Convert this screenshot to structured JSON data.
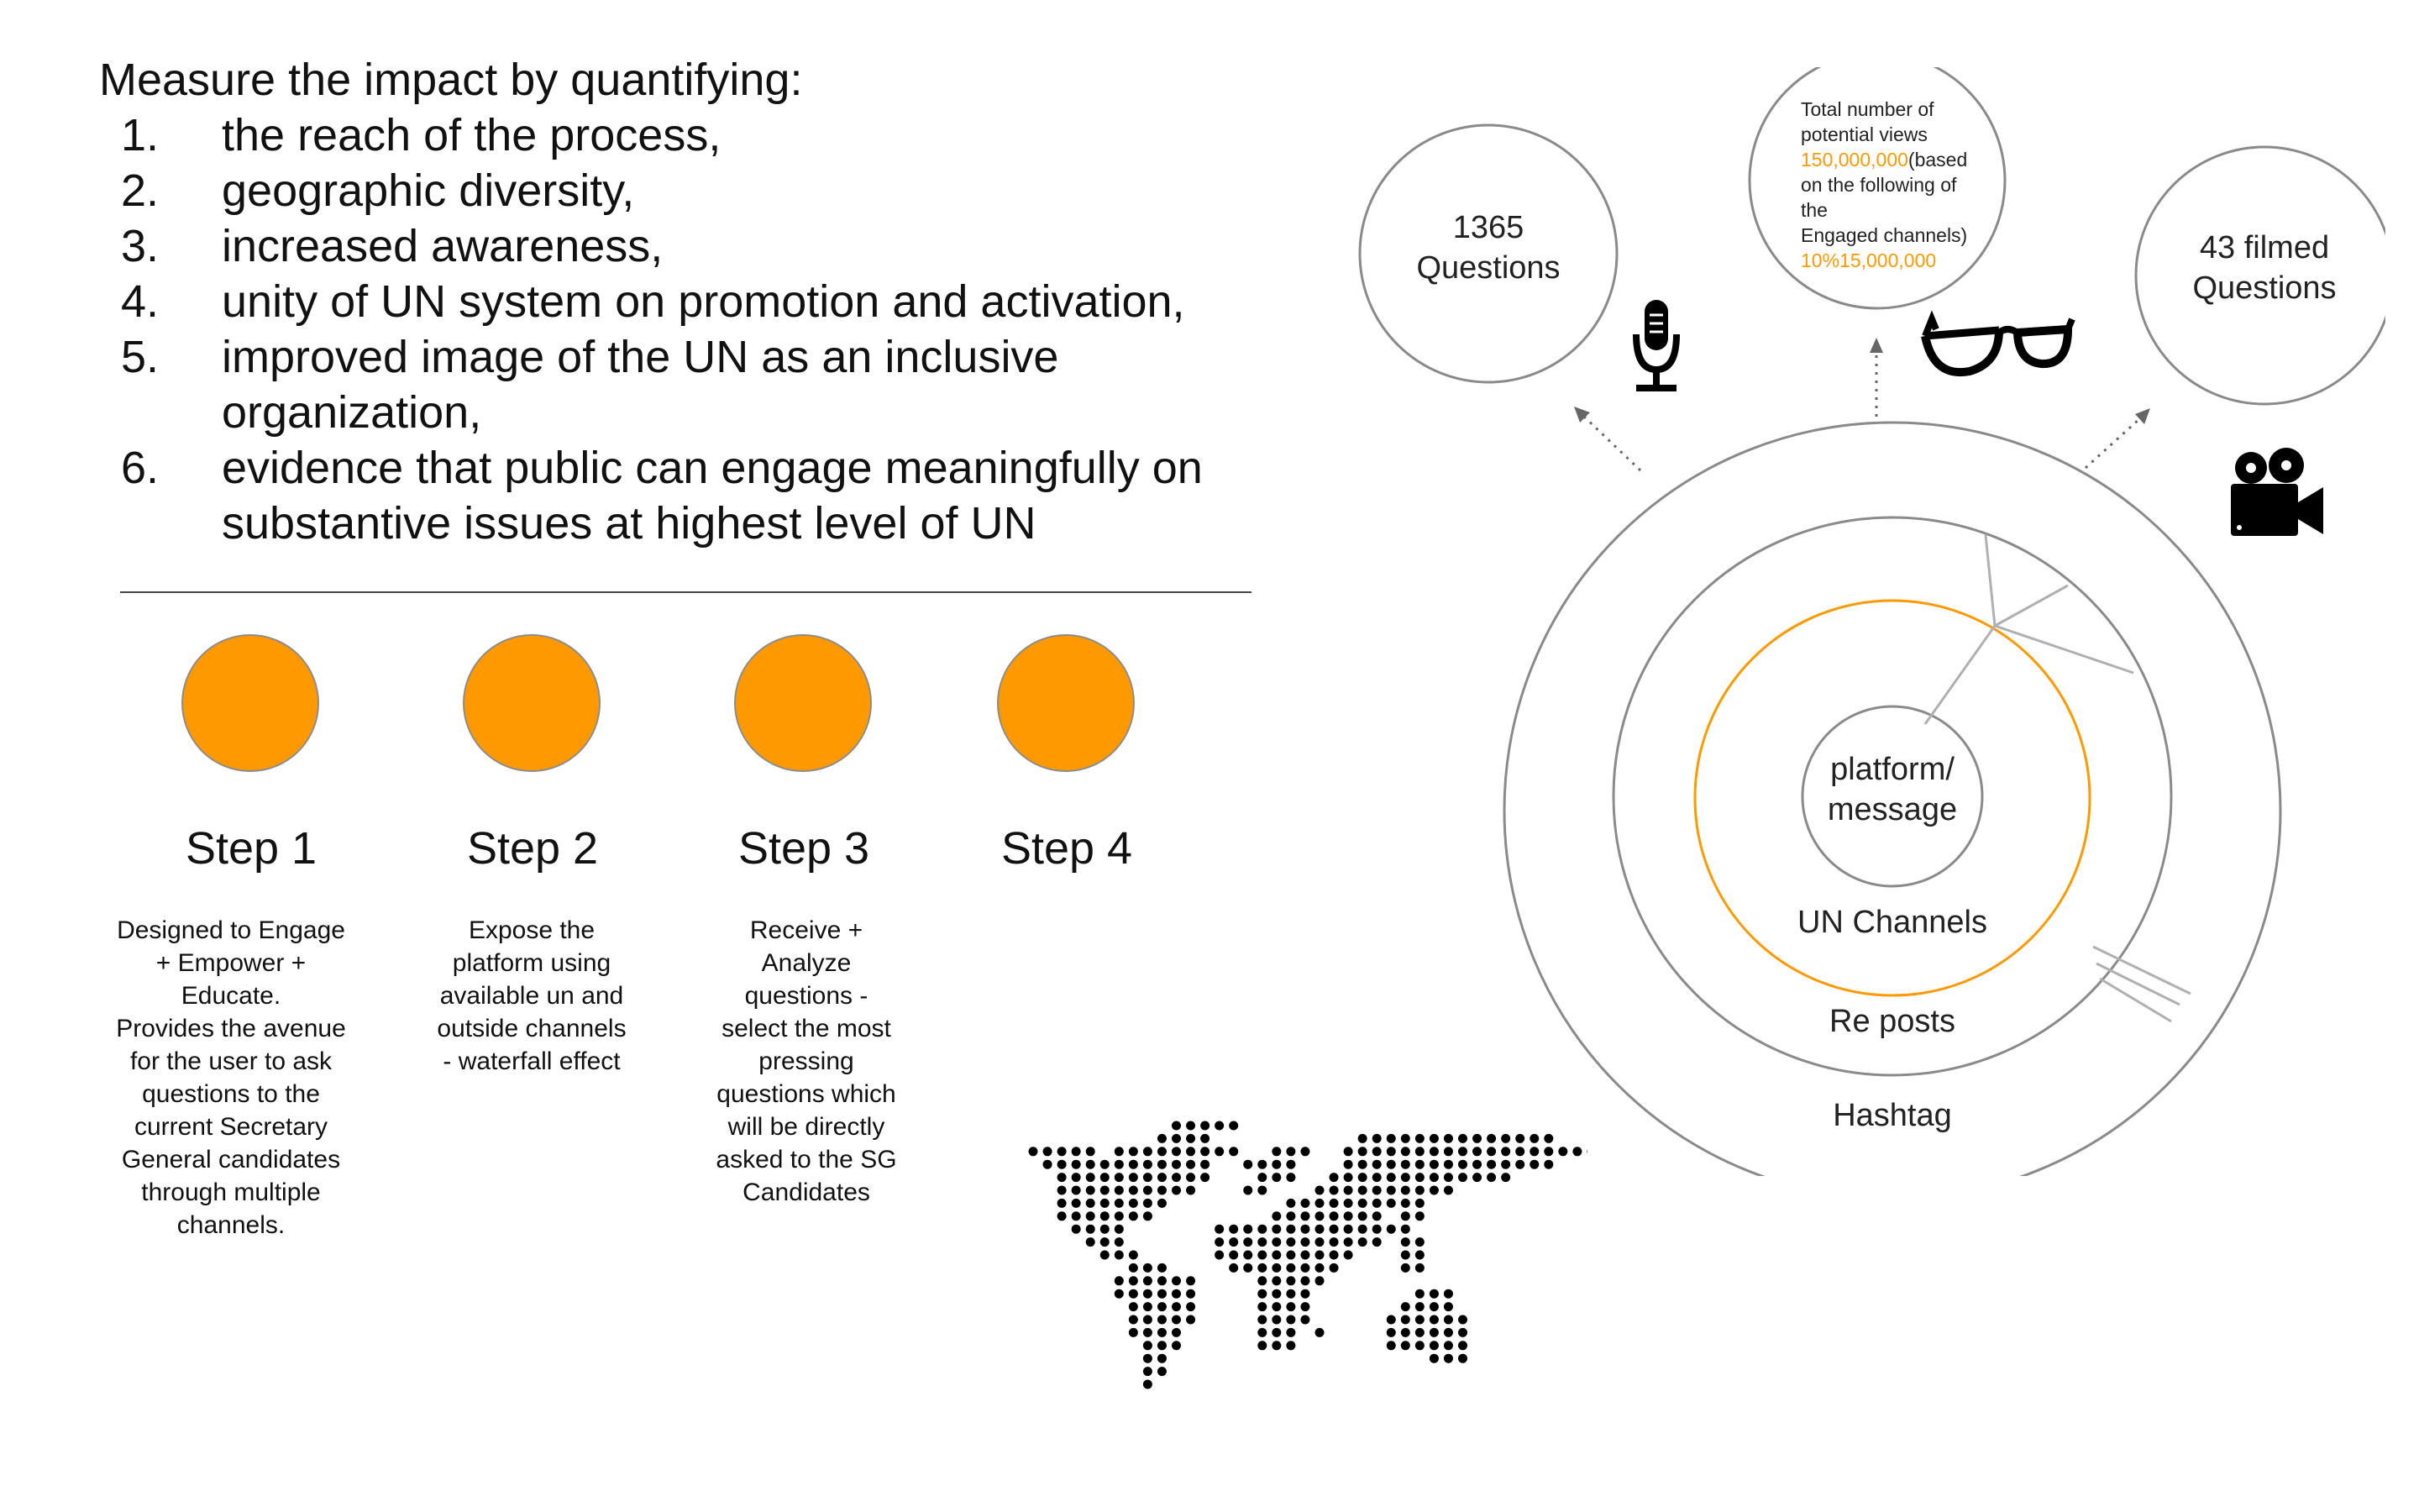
{
  "heading": "Measure the impact by quantifying:",
  "goals": [
    {
      "num": "1.",
      "lines": [
        "the reach of the process,"
      ]
    },
    {
      "num": "2.",
      "lines": [
        "geographic diversity,"
      ]
    },
    {
      "num": "3.",
      "lines": [
        "increased awareness,"
      ]
    },
    {
      "num": "4.",
      "lines": [
        "unity of UN system on promotion and activation,"
      ]
    },
    {
      "num": "5.",
      "lines": [
        "improved image of the UN as an inclusive",
        "organization,"
      ]
    },
    {
      "num": "6.",
      "lines": [
        "evidence that public can engage meaningfully on",
        "substantive issues at highest level of UN"
      ]
    }
  ],
  "steps": [
    {
      "title": "Step 1",
      "desc": [
        "Designed to Engage",
        "+ Empower +",
        "Educate.",
        "Provides the avenue",
        "for the user to ask",
        "questions to the",
        "current Secretary",
        "General candidates",
        "through multiple",
        "channels."
      ]
    },
    {
      "title": "Step 2",
      "desc": [
        "Expose the",
        "platform using",
        "available un and",
        "outside channels",
        "- waterfall effect"
      ]
    },
    {
      "title": "Step 3",
      "desc": [
        "Receive +",
        "Analyze",
        "questions -",
        "select the most",
        "pressing",
        "questions which",
        "will be directly",
        "asked to the SG",
        "Candidates"
      ]
    },
    {
      "title": "Step 4",
      "desc": []
    }
  ],
  "diagram": {
    "center": [
      "platform/",
      "message"
    ],
    "rings": [
      "UN Channels",
      "Re posts",
      "Hashtag"
    ],
    "questions_bubble": [
      "1365",
      "Questions"
    ],
    "filmed_bubble": [
      "43 filmed",
      "Questions"
    ],
    "views_bubble": {
      "line1": "Total number of",
      "line2": "potential views",
      "line3_highlight": "150,000,000",
      "line3_rest": "(based",
      "line4": "on the following of",
      "line5": "the",
      "line6": "Engaged channels)",
      "line7_highlight": "10%15,000,000"
    },
    "icons": [
      "microphone-icon",
      "glasses-icon",
      "video-camera-icon",
      "world-map-icon"
    ]
  },
  "colors": {
    "accent": "#fe9901",
    "ring": "#888888",
    "text": "#111111"
  }
}
